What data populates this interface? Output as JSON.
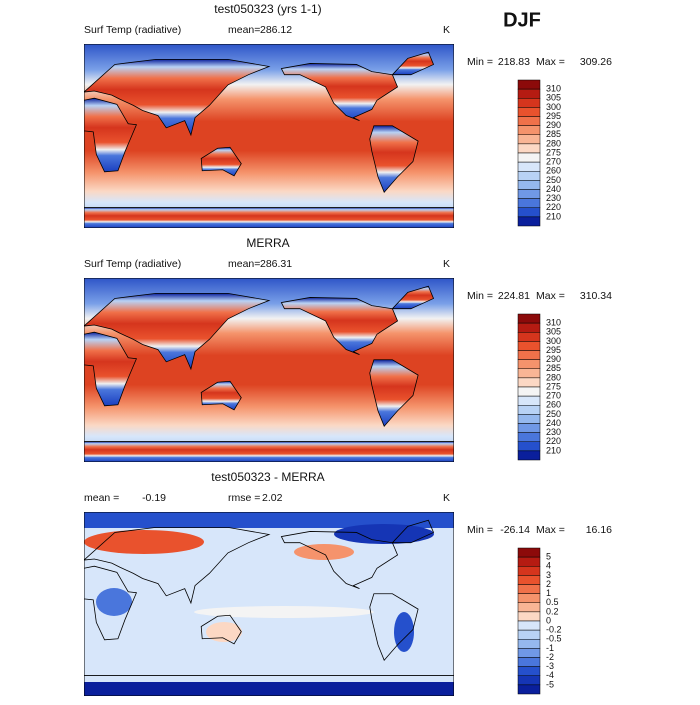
{
  "season": "DJF",
  "panels": [
    {
      "title": "test050323 (yrs 1-1)",
      "variable": "Surf Temp (radiative)",
      "stat_label": "mean=",
      "stat_value": "286.12",
      "units": "K",
      "min_label": "Min =",
      "min": "218.83",
      "max_label": "Max =",
      "max": "309.26",
      "colorbar": {
        "labels": [
          "310",
          "305",
          "300",
          "295",
          "290",
          "285",
          "280",
          "275",
          "270",
          "260",
          "250",
          "240",
          "230",
          "220",
          "210"
        ],
        "colors": [
          "#8c0a0a",
          "#b51b12",
          "#d5351d",
          "#e9522d",
          "#f0714a",
          "#f5936c",
          "#f9b595",
          "#fcd8c4",
          "#f4f4f4",
          "#d7e6fa",
          "#b8d2f5",
          "#95b8ee",
          "#7098e6",
          "#4a76dc",
          "#2550cc",
          "#0a1f9c"
        ]
      }
    },
    {
      "title": "MERRA",
      "variable": "Surf Temp (radiative)",
      "stat_label": "mean=",
      "stat_value": "286.31",
      "units": "K",
      "min_label": "Min =",
      "min": "224.81",
      "max_label": "Max =",
      "max": "310.34",
      "colorbar": {
        "labels": [
          "310",
          "305",
          "300",
          "295",
          "290",
          "285",
          "280",
          "275",
          "270",
          "260",
          "250",
          "240",
          "230",
          "220",
          "210"
        ],
        "colors": [
          "#8c0a0a",
          "#b51b12",
          "#d5351d",
          "#e9522d",
          "#f0714a",
          "#f5936c",
          "#f9b595",
          "#fcd8c4",
          "#f4f4f4",
          "#d7e6fa",
          "#b8d2f5",
          "#95b8ee",
          "#7098e6",
          "#4a76dc",
          "#2550cc",
          "#0a1f9c"
        ]
      }
    },
    {
      "title": "test050323 - MERRA",
      "stat_label": "mean =",
      "stat_value": "-0.19",
      "stat2_label": "rmse =",
      "stat2_value": "2.02",
      "units": "K",
      "min_label": "Min =",
      "min": "-26.14",
      "max_label": "Max =",
      "max": "16.16",
      "colorbar": {
        "labels": [
          "5",
          "4",
          "3",
          "2",
          "1",
          "0.5",
          "0.2",
          "0",
          "-0.2",
          "-0.5",
          "-1",
          "-2",
          "-3",
          "-4",
          "-5"
        ],
        "colors": [
          "#8c0a0a",
          "#b51b12",
          "#d5351d",
          "#e9522d",
          "#f0714a",
          "#f5936c",
          "#f9b595",
          "#fcd8c4",
          "#d7e6fa",
          "#b8d2f5",
          "#95b8ee",
          "#7098e6",
          "#4a76dc",
          "#2550cc",
          "#1535b5",
          "#0a1f9c"
        ]
      }
    }
  ]
}
